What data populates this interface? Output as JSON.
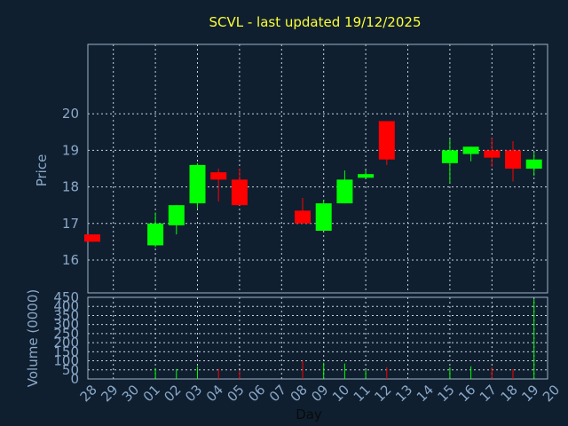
{
  "chart_data": [
    {
      "type": "candlestick",
      "title": "SCVL - last updated 19/12/2025",
      "ylabel": "Price",
      "ylim": [
        15.1,
        21.9
      ],
      "yticks": [
        16,
        17,
        18,
        19,
        20
      ],
      "grid": true,
      "categories": [
        "28",
        "29",
        "30",
        "01",
        "02",
        "03",
        "04",
        "05",
        "06",
        "07",
        "08",
        "09",
        "10",
        "11",
        "12",
        "13",
        "14",
        "15",
        "16",
        "17",
        "18",
        "19",
        "20"
      ],
      "candles": [
        {
          "day": "28",
          "open": 16.7,
          "close": 16.5,
          "high": 16.7,
          "low": 16.5
        },
        {
          "day": "01",
          "open": 16.4,
          "close": 17.0,
          "high": 17.3,
          "low": 16.35
        },
        {
          "day": "02",
          "open": 16.95,
          "close": 17.5,
          "high": 17.5,
          "low": 16.7
        },
        {
          "day": "03",
          "open": 17.55,
          "close": 18.6,
          "high": 18.65,
          "low": 17.4
        },
        {
          "day": "04",
          "open": 18.4,
          "close": 18.2,
          "high": 18.5,
          "low": 17.6
        },
        {
          "day": "05",
          "open": 18.2,
          "close": 17.5,
          "high": 18.5,
          "low": 17.5
        },
        {
          "day": "08",
          "open": 17.35,
          "close": 17.0,
          "high": 17.7,
          "low": 17.0
        },
        {
          "day": "09",
          "open": 16.8,
          "close": 17.55,
          "high": 17.65,
          "low": 16.8
        },
        {
          "day": "10",
          "open": 17.55,
          "close": 18.2,
          "high": 18.45,
          "low": 17.55
        },
        {
          "day": "11",
          "open": 18.25,
          "close": 18.35,
          "high": 18.45,
          "low": 18.25
        },
        {
          "day": "12",
          "open": 19.8,
          "close": 18.75,
          "high": 19.8,
          "low": 18.6
        },
        {
          "day": "15",
          "open": 18.65,
          "close": 19.0,
          "high": 19.3,
          "low": 18.1
        },
        {
          "day": "16",
          "open": 18.9,
          "close": 19.1,
          "high": 19.1,
          "low": 18.7
        },
        {
          "day": "17",
          "open": 19.0,
          "close": 18.8,
          "high": 19.35,
          "low": 18.55
        },
        {
          "day": "18",
          "open": 19.0,
          "close": 18.5,
          "high": 19.25,
          "low": 18.15
        },
        {
          "day": "19",
          "open": 18.5,
          "close": 18.75,
          "high": 18.95,
          "low": 18.3
        }
      ]
    },
    {
      "type": "bar",
      "ylabel": "Volume (0000)",
      "xlabel": "Day",
      "ylim": [
        0,
        450
      ],
      "yticks": [
        0,
        50,
        100,
        150,
        200,
        250,
        300,
        350,
        400,
        450
      ],
      "grid": true,
      "categories": [
        "28",
        "29",
        "30",
        "01",
        "02",
        "03",
        "04",
        "05",
        "06",
        "07",
        "08",
        "09",
        "10",
        "11",
        "12",
        "13",
        "14",
        "15",
        "16",
        "17",
        "18",
        "19",
        "20"
      ],
      "values": [
        {
          "day": "01",
          "volume": 60,
          "direction": "up"
        },
        {
          "day": "02",
          "volume": 55,
          "direction": "up"
        },
        {
          "day": "03",
          "volume": 70,
          "direction": "up"
        },
        {
          "day": "04",
          "volume": 55,
          "direction": "down"
        },
        {
          "day": "05",
          "volume": 45,
          "direction": "down"
        },
        {
          "day": "08",
          "volume": 100,
          "direction": "down"
        },
        {
          "day": "09",
          "volume": 90,
          "direction": "up"
        },
        {
          "day": "10",
          "volume": 85,
          "direction": "up"
        },
        {
          "day": "11",
          "volume": 50,
          "direction": "up"
        },
        {
          "day": "12",
          "volume": 65,
          "direction": "down"
        },
        {
          "day": "15",
          "volume": 65,
          "direction": "up"
        },
        {
          "day": "16",
          "volume": 70,
          "direction": "up"
        },
        {
          "day": "17",
          "volume": 65,
          "direction": "down"
        },
        {
          "day": "18",
          "volume": 55,
          "direction": "down"
        },
        {
          "day": "19",
          "volume": 440,
          "direction": "up"
        }
      ]
    }
  ],
  "colors": {
    "background": "#0f1f30",
    "title": "#ffff33",
    "axis_text": "#8aa8c8",
    "up": "#00ff00",
    "down": "#ff0000",
    "grid": "#c8d2dc"
  }
}
